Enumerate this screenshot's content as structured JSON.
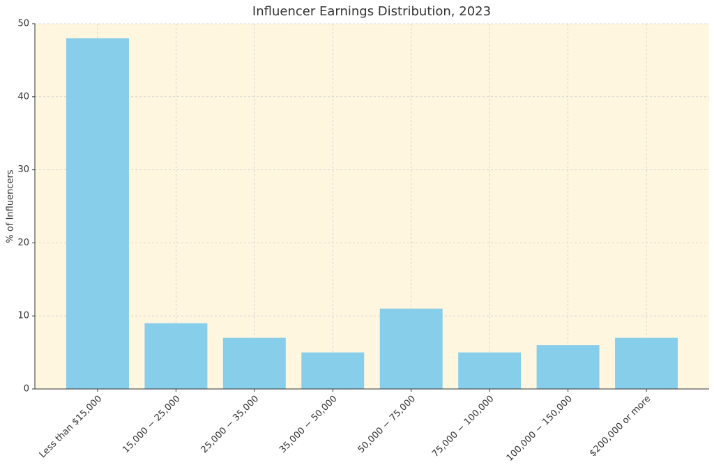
{
  "chart_data": {
    "type": "bar",
    "title": "Influencer Earnings Distribution, 2023",
    "y_label": "% of Influencers",
    "categories": [
      "Less than $15,000",
      "15,000 − 25,000",
      "25,000 − 35,000",
      "35,000 − 50,000",
      "50,000 − 75,000",
      "75,000 − 100,000",
      "100,000 − 150,000",
      "$200,000 or more"
    ],
    "values": [
      48,
      9,
      7,
      5,
      11,
      5,
      6,
      7
    ],
    "color": "#87ceeb",
    "background": "#fff6e0",
    "ylim": [
      0,
      50
    ],
    "yticks": [
      0,
      10,
      20,
      30,
      40,
      50
    ],
    "grid": true
  }
}
